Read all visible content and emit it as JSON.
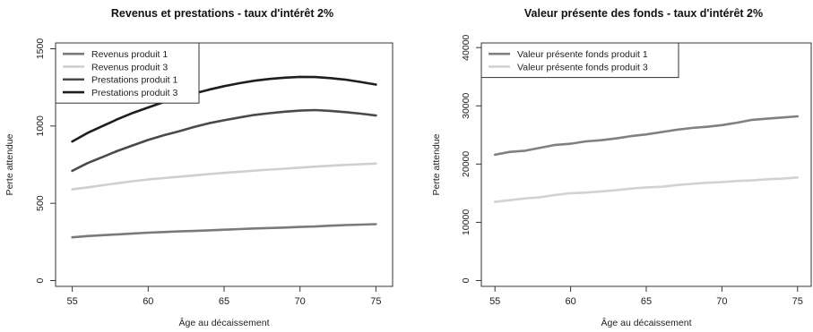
{
  "chart_data": [
    {
      "type": "line",
      "title": "Revenus et prestations - taux d'intérêt 2%",
      "xlabel": "Âge au décaissement",
      "ylabel": "Perte attendue",
      "xlim": [
        55,
        75
      ],
      "ylim": [
        0,
        1500
      ],
      "xticks": [
        55,
        60,
        65,
        70,
        75
      ],
      "yticks": [
        0,
        500,
        1000,
        1500
      ],
      "grid": false,
      "legend_position": "top-left",
      "x": [
        55,
        56,
        57,
        58,
        59,
        60,
        61,
        62,
        63,
        64,
        65,
        66,
        67,
        68,
        69,
        70,
        71,
        72,
        73,
        74,
        75
      ],
      "series": [
        {
          "name": "Revenus produit 1",
          "color": "#7a7a7a",
          "values": [
            280,
            288,
            294,
            299,
            305,
            310,
            314,
            318,
            321,
            325,
            329,
            333,
            337,
            340,
            343,
            347,
            350,
            355,
            359,
            362,
            365
          ]
        },
        {
          "name": "Revenus produit 3",
          "color": "#cfcfcf",
          "values": [
            590,
            603,
            617,
            630,
            643,
            654,
            663,
            671,
            680,
            689,
            697,
            704,
            711,
            718,
            724,
            731,
            737,
            743,
            748,
            753,
            757
          ]
        },
        {
          "name": "Prestations produit 1",
          "color": "#4a4a4a",
          "values": [
            710,
            760,
            800,
            840,
            875,
            910,
            940,
            965,
            993,
            1018,
            1037,
            1055,
            1072,
            1083,
            1093,
            1100,
            1103,
            1098,
            1090,
            1080,
            1068
          ]
        },
        {
          "name": "Prestations produit 3",
          "color": "#1e1e1e",
          "values": [
            900,
            955,
            1000,
            1045,
            1085,
            1120,
            1155,
            1185,
            1210,
            1235,
            1258,
            1277,
            1293,
            1305,
            1313,
            1318,
            1317,
            1310,
            1300,
            1285,
            1268
          ]
        }
      ]
    },
    {
      "type": "line",
      "title": "Valeur présente des fonds - taux d'intérêt 2%",
      "xlabel": "Âge au décaissement",
      "ylabel": "Perte attendue",
      "xlim": [
        55,
        75
      ],
      "ylim": [
        0,
        40000
      ],
      "xticks": [
        55,
        60,
        65,
        70,
        75
      ],
      "yticks": [
        0,
        10000,
        20000,
        30000,
        40000
      ],
      "grid": false,
      "legend_position": "top-left",
      "x": [
        55,
        56,
        57,
        58,
        59,
        60,
        61,
        62,
        63,
        64,
        65,
        66,
        67,
        68,
        69,
        70,
        71,
        72,
        73,
        74,
        75
      ],
      "series": [
        {
          "name": "Valeur présente fonds produit 1",
          "color": "#808080",
          "values": [
            21600,
            22100,
            22300,
            22800,
            23300,
            23500,
            23900,
            24100,
            24400,
            24800,
            25100,
            25500,
            25900,
            26200,
            26400,
            26700,
            27100,
            27600,
            27800,
            28000,
            28200
          ]
        },
        {
          "name": "Valeur présente fonds produit 3",
          "color": "#d2d2d2",
          "values": [
            13500,
            13800,
            14100,
            14300,
            14700,
            15000,
            15100,
            15300,
            15500,
            15800,
            16000,
            16100,
            16400,
            16600,
            16800,
            16900,
            17100,
            17200,
            17400,
            17500,
            17700
          ]
        }
      ]
    }
  ]
}
